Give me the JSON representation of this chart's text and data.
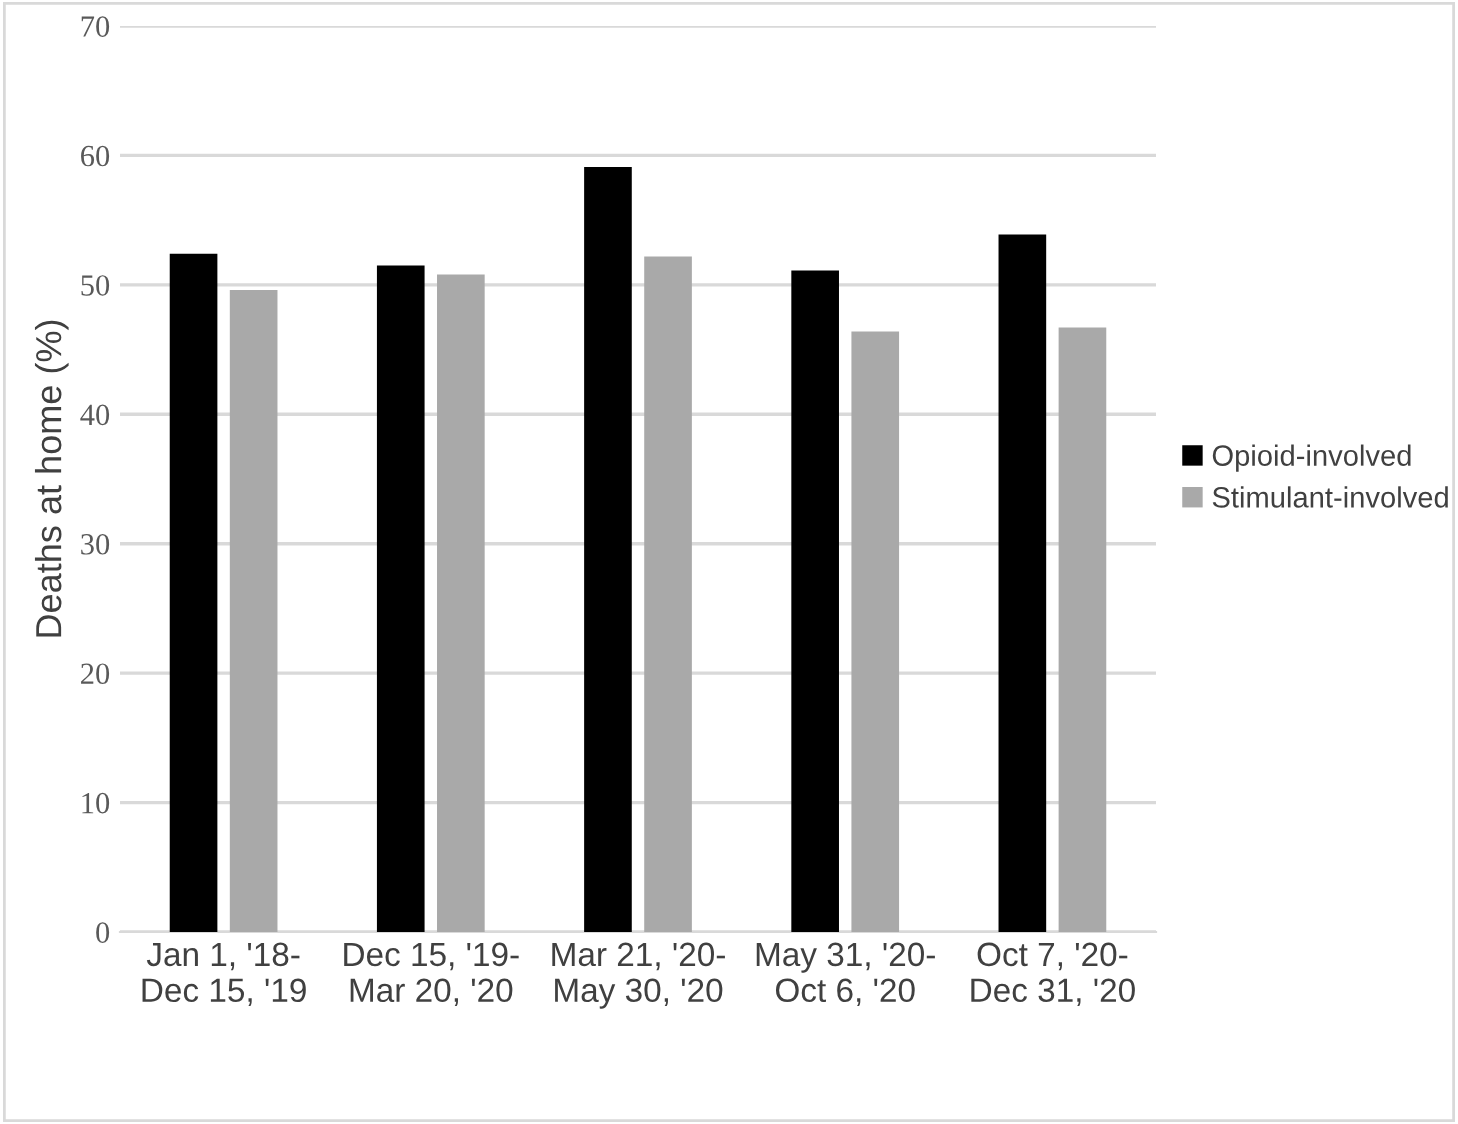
{
  "chart_data": {
    "type": "bar",
    "ylabel": "Deaths at home (%)",
    "categories": [
      "Jan 1, '18-\nDec 15, '19",
      "Dec 15, '19-\nMar 20, '20",
      "Mar 21, '20-\nMay 30, '20",
      "May 31, '20-\nOct 6, '20",
      "Oct 7, '20-\nDec 31, '20"
    ],
    "series": [
      {
        "name": "Opioid-involved",
        "color": "#000000",
        "values": [
          52.4,
          51.5,
          59.1,
          51.1,
          53.9
        ]
      },
      {
        "name": "Stimulant-involved",
        "color": "#a9a9a9",
        "values": [
          49.6,
          50.8,
          52.2,
          46.4,
          46.7
        ]
      }
    ],
    "ylim": [
      0,
      70
    ],
    "yticks": [
      0,
      10,
      20,
      30,
      40,
      50,
      60,
      70
    ],
    "grid": "y",
    "legend": "right"
  }
}
